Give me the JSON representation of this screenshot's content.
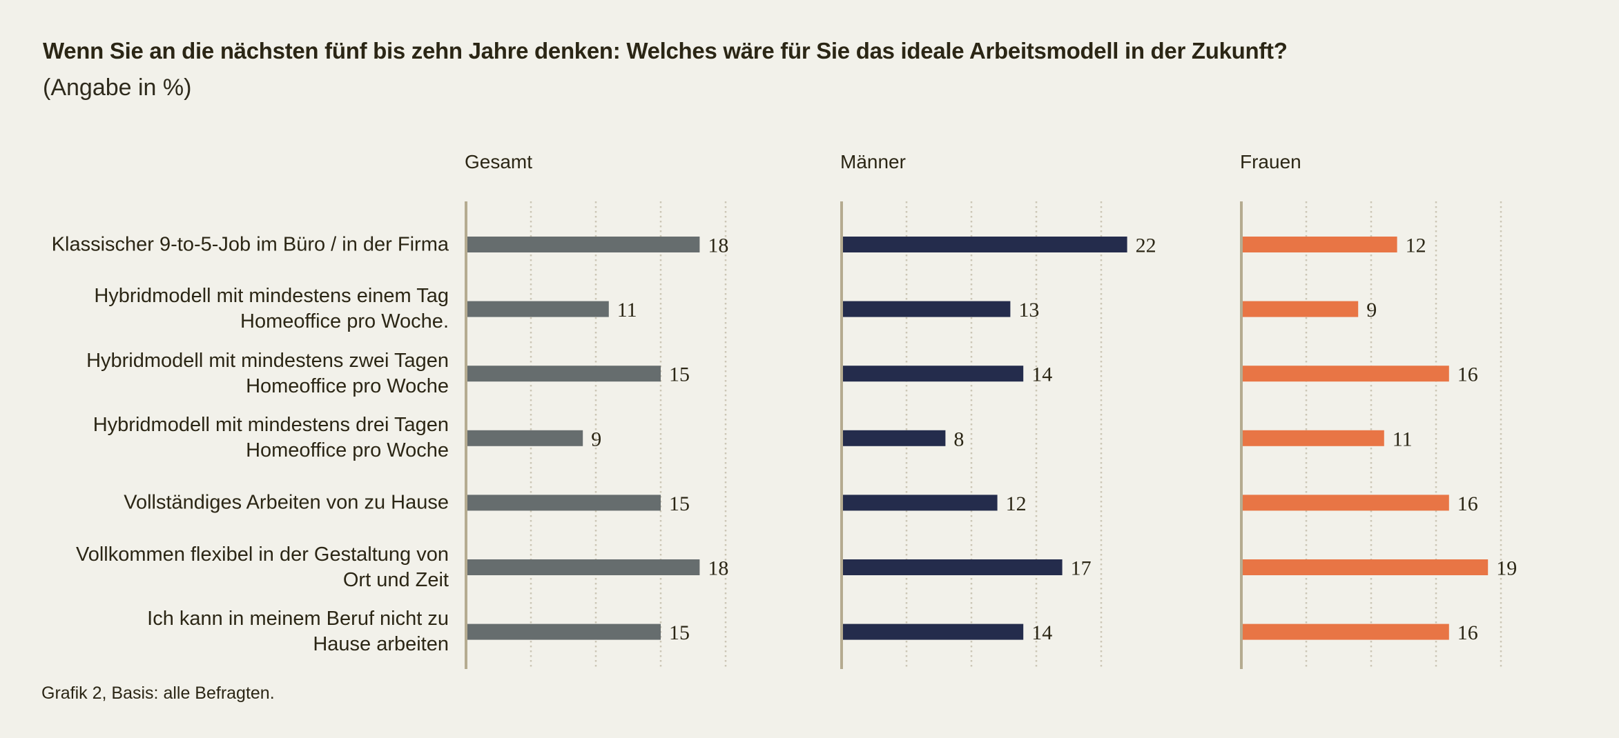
{
  "title": "Wenn Sie an die nächsten fünf bis zehn Jahre denken: Welches wäre für Sie das ideale Arbeitsmodell in der Zukunft?",
  "subtitle": "(Angabe in %)",
  "footnote": "Grafik 2, Basis: alle Befragten.",
  "colors": {
    "background": "#f2f1ea",
    "text": "#2b2615",
    "axis": "#b5ab90",
    "grid": "#ccc6b5"
  },
  "chart_data": {
    "type": "bar",
    "orientation": "horizontal",
    "title": "Wenn Sie an die nächsten fünf bis zehn Jahre denken: Welches wäre für Sie das ideale Arbeitsmodell in der Zukunft?",
    "subtitle": "(Angabe in %)",
    "xlabel": "",
    "ylabel": "",
    "xlim": [
      0,
      20
    ],
    "grid": true,
    "grid_ticks": [
      5,
      10,
      15,
      20
    ],
    "tick_labels_shown": false,
    "data_labels": true,
    "legend": "none (panel titles)",
    "categories": [
      [
        "Klassischer 9-to-5-Job im Büro / in der Firma"
      ],
      [
        "Hybridmodell mit mindestens einem Tag",
        "Homeoffice pro Woche."
      ],
      [
        "Hybridmodell mit mindestens zwei Tagen",
        "Homeoffice pro Woche"
      ],
      [
        "Hybridmodell mit mindestens drei Tagen",
        "Homeoffice pro Woche"
      ],
      [
        "Vollständiges Arbeiten von zu Hause"
      ],
      [
        "Vollkommen flexibel in der Gestaltung von",
        "Ort und Zeit"
      ],
      [
        "Ich kann in meinem Beruf nicht zu",
        "Hause arbeiten"
      ]
    ],
    "series": [
      {
        "name": "Gesamt",
        "color": "#666d6e",
        "values": [
          18,
          11,
          15,
          9,
          15,
          18,
          15
        ]
      },
      {
        "name": "Männer",
        "color": "#242c4c",
        "values": [
          22,
          13,
          14,
          8,
          12,
          17,
          14
        ]
      },
      {
        "name": "Frauen",
        "color": "#e87545",
        "values": [
          12,
          9,
          16,
          11,
          16,
          19,
          16
        ]
      }
    ]
  }
}
